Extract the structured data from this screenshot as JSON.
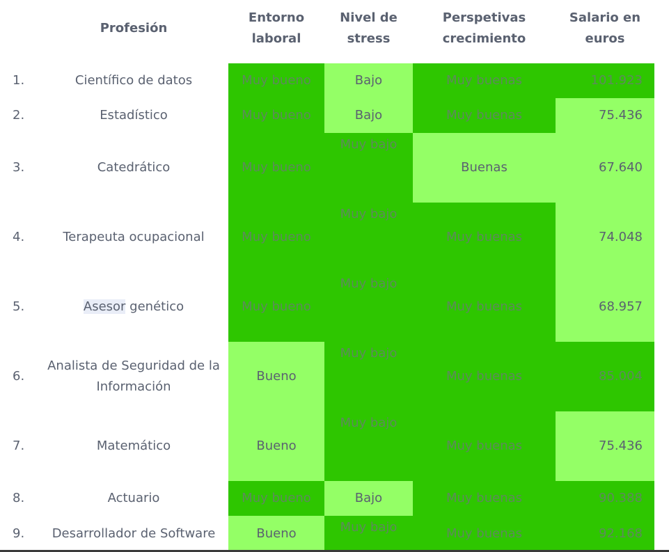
{
  "headers": {
    "profession": "Profesión",
    "environment": [
      "Entorno",
      "laboral"
    ],
    "stress": [
      "Nivel de",
      "stress"
    ],
    "growth": [
      "Perspetivas",
      "crecimiento"
    ],
    "salary": [
      "Salario en",
      "euros"
    ]
  },
  "colors": {
    "dark_green": "#2ec600",
    "light_green": "#94ff66",
    "text": "#5a6170",
    "highlight": "#e9edf7"
  },
  "rows": [
    {
      "num": "1.",
      "prof": "Científico de datos",
      "env": "Muy bueno",
      "env_level": "dark",
      "stress": "Bajo",
      "stress_level": "light",
      "growth": "Muy buenas",
      "growth_level": "dark",
      "salary": "101.923",
      "salary_level": "dark"
    },
    {
      "num": "2.",
      "prof": "Estadístico",
      "env": "Muy bueno",
      "env_level": "dark",
      "stress": "Bajo",
      "stress_level": "light",
      "growth": "Muy buenas",
      "growth_level": "dark",
      "salary": "75.436",
      "salary_level": "light"
    },
    {
      "num": "3.",
      "prof": "Catedrático",
      "env": "Muy bueno",
      "env_level": "dark",
      "stress": "Muy bajo",
      "stress_level": "dark",
      "growth": "Buenas",
      "growth_level": "light",
      "salary": "67.640",
      "salary_level": "light"
    },
    {
      "num": "4.",
      "prof": "Terapeuta ocupacional",
      "env": "Muy bueno",
      "env_level": "dark",
      "stress": "Muy bajo",
      "stress_level": "dark",
      "growth": "Muy buenas",
      "growth_level": "dark",
      "salary": "74.048",
      "salary_level": "light"
    },
    {
      "num": "5.",
      "prof_highlight": "Asesor",
      "prof": " genético",
      "env": "Muy bueno",
      "env_level": "dark",
      "stress": "Muy bajo",
      "stress_level": "dark",
      "growth": "Muy buenas",
      "growth_level": "dark",
      "salary": "68.957",
      "salary_level": "light"
    },
    {
      "num": "6.",
      "prof": "Analista de Seguridad de la Información",
      "env": "Bueno",
      "env_level": "light",
      "stress": "Muy bajo",
      "stress_level": "dark",
      "growth": "Muy buenas",
      "growth_level": "dark",
      "salary": "85.004",
      "salary_level": "dark"
    },
    {
      "num": "7.",
      "prof": "Matemático",
      "env": "Bueno",
      "env_level": "light",
      "stress": "Muy bajo",
      "stress_level": "dark",
      "growth": "Muy buenas",
      "growth_level": "dark",
      "salary": "75.436",
      "salary_level": "light"
    },
    {
      "num": "8.",
      "prof": "Actuario",
      "env": "Muy bueno",
      "env_level": "dark",
      "stress": "Bajo",
      "stress_level": "light",
      "growth": "Muy buenas",
      "growth_level": "dark",
      "salary": "90.388",
      "salary_level": "dark"
    },
    {
      "num": "9.",
      "prof": "Desarrollador de Software",
      "env": "Bueno",
      "env_level": "light",
      "stress": "Muy bajo",
      "stress_level": "dark",
      "growth": "Muy buenas",
      "growth_level": "dark",
      "salary": "92.168",
      "salary_level": "dark"
    }
  ]
}
